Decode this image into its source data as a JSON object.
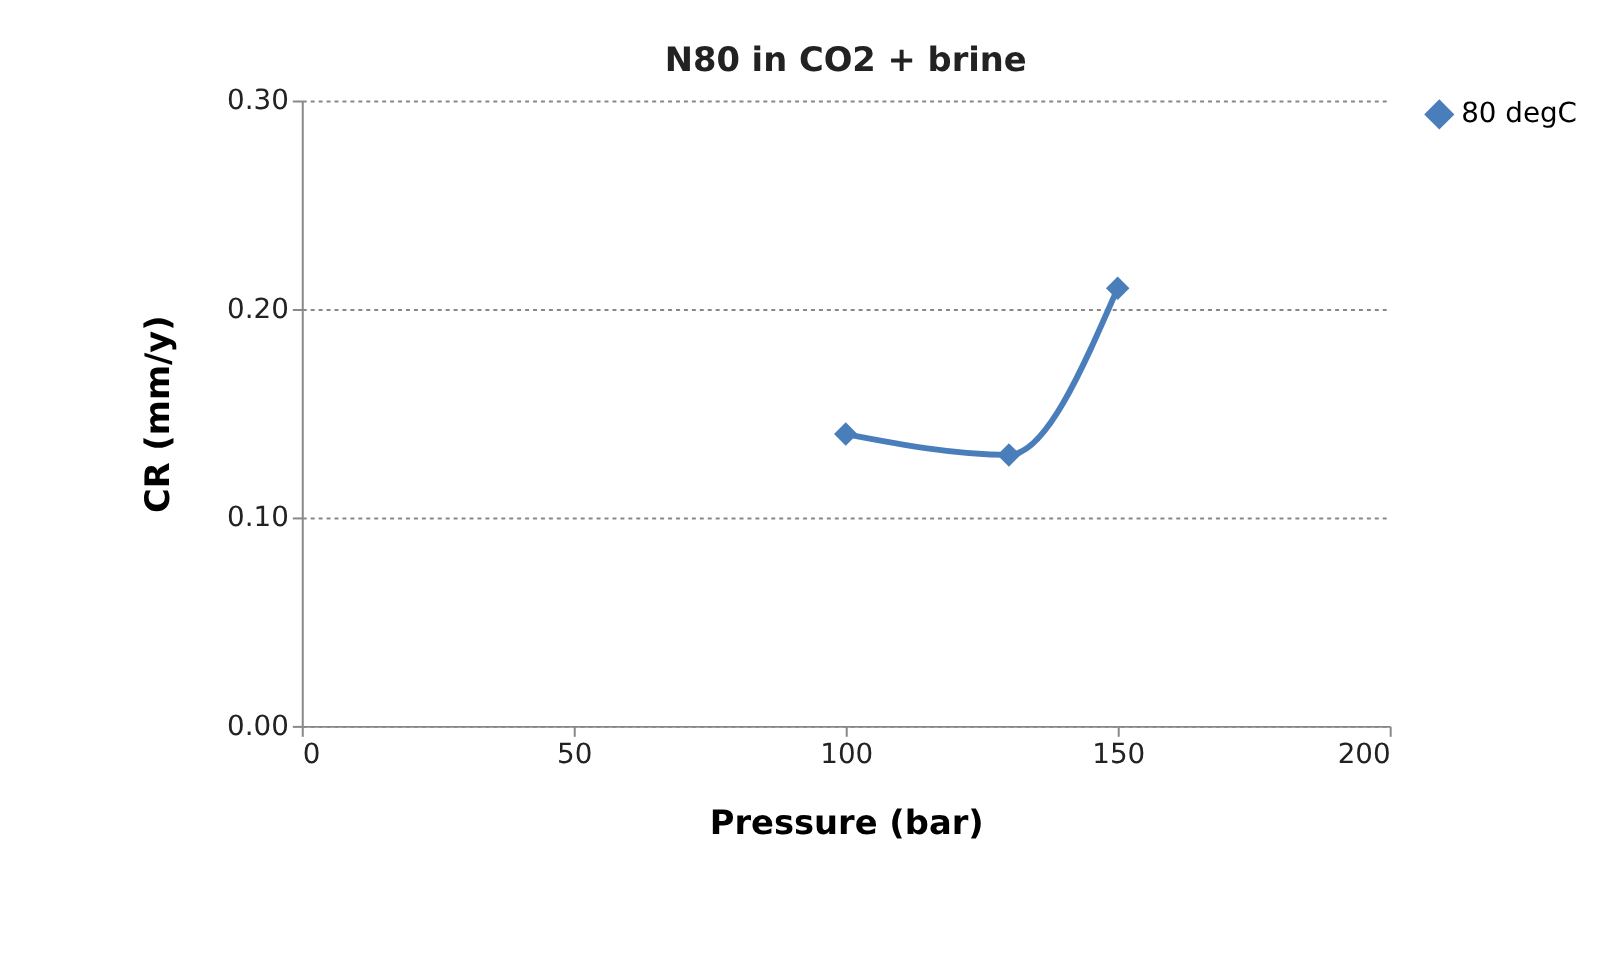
{
  "chart_data": {
    "type": "line",
    "title": "N80 in CO2 + brine",
    "xlabel": "Pressure (bar)",
    "ylabel": "CR (mm/y)",
    "x": [
      100,
      130,
      150
    ],
    "series": [
      {
        "name": "80 degC",
        "color": "#4a7ebb",
        "values": [
          0.14,
          0.13,
          0.21
        ]
      }
    ],
    "xlim": [
      0,
      200
    ],
    "xticks": [
      0,
      50,
      100,
      150,
      200
    ],
    "ylim": [
      0,
      0.3
    ],
    "yticks": [
      {
        "value": 0,
        "label": "0.00"
      },
      {
        "value": 0.1,
        "label": "0.10"
      },
      {
        "value": 0.2,
        "label": "0.20"
      },
      {
        "value": 0.3,
        "label": "0.30"
      }
    ],
    "grid": "y",
    "legend": "right",
    "marker": "diamond",
    "line_style": "solid"
  }
}
